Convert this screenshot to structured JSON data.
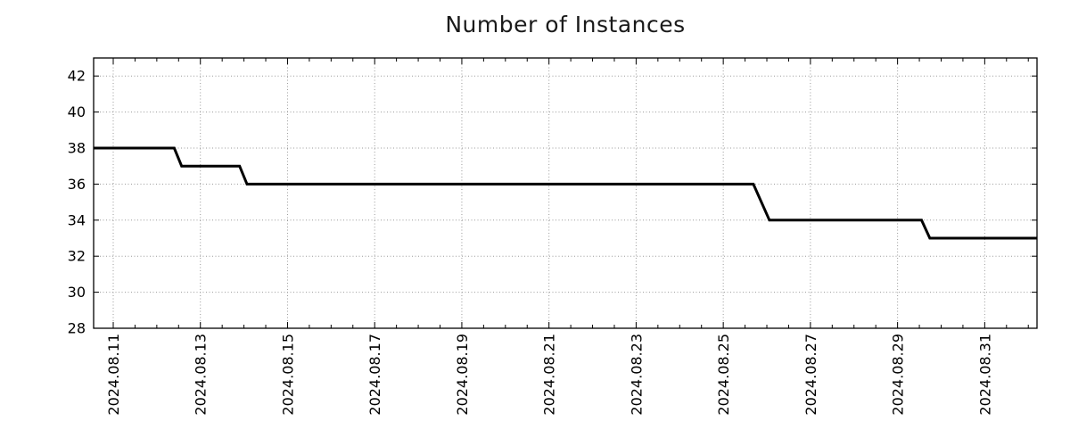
{
  "title": "Number of Instances",
  "colors": {
    "background": "#ffffff",
    "line": "#000000",
    "grid": "#9a9a9a",
    "border": "#000000",
    "text": "#000000"
  },
  "chart_data": {
    "type": "line",
    "title": "Number of Instances",
    "subtitle": "",
    "xlabel": "",
    "ylabel": "",
    "legend": "none",
    "grid": "dotted",
    "x_unit": "date shown as decimal day of 2024-08 (32.2 = 2024-09-01.2)",
    "xlim": [
      10.55,
      32.2
    ],
    "ylim": [
      28,
      43
    ],
    "x_minor_tick_step": 0.5,
    "x_ticks": [
      {
        "v": 11,
        "label": "2024.08.11"
      },
      {
        "v": 13,
        "label": "2024.08.13"
      },
      {
        "v": 15,
        "label": "2024.08.15"
      },
      {
        "v": 17,
        "label": "2024.08.17"
      },
      {
        "v": 19,
        "label": "2024.08.19"
      },
      {
        "v": 21,
        "label": "2024.08.21"
      },
      {
        "v": 23,
        "label": "2024.08.23"
      },
      {
        "v": 25,
        "label": "2024.08.25"
      },
      {
        "v": 27,
        "label": "2024.08.27"
      },
      {
        "v": 29,
        "label": "2024.08.29"
      },
      {
        "v": 31,
        "label": "2024.08.31"
      }
    ],
    "y_ticks": [
      {
        "v": 28,
        "label": "28"
      },
      {
        "v": 30,
        "label": "30"
      },
      {
        "v": 32,
        "label": "32"
      },
      {
        "v": 34,
        "label": "34"
      },
      {
        "v": 36,
        "label": "36"
      },
      {
        "v": 38,
        "label": "38"
      },
      {
        "v": 40,
        "label": "40"
      },
      {
        "v": 42,
        "label": "42"
      }
    ],
    "series": [
      {
        "name": "instances",
        "color": "#000000",
        "width": 3,
        "points": [
          [
            10.55,
            38
          ],
          [
            12.4,
            38
          ],
          [
            12.57,
            37
          ],
          [
            13.9,
            37
          ],
          [
            14.07,
            36
          ],
          [
            25.69,
            36
          ],
          [
            26.06,
            34
          ],
          [
            29.55,
            34
          ],
          [
            29.74,
            33
          ],
          [
            32.2,
            33
          ]
        ]
      }
    ]
  }
}
